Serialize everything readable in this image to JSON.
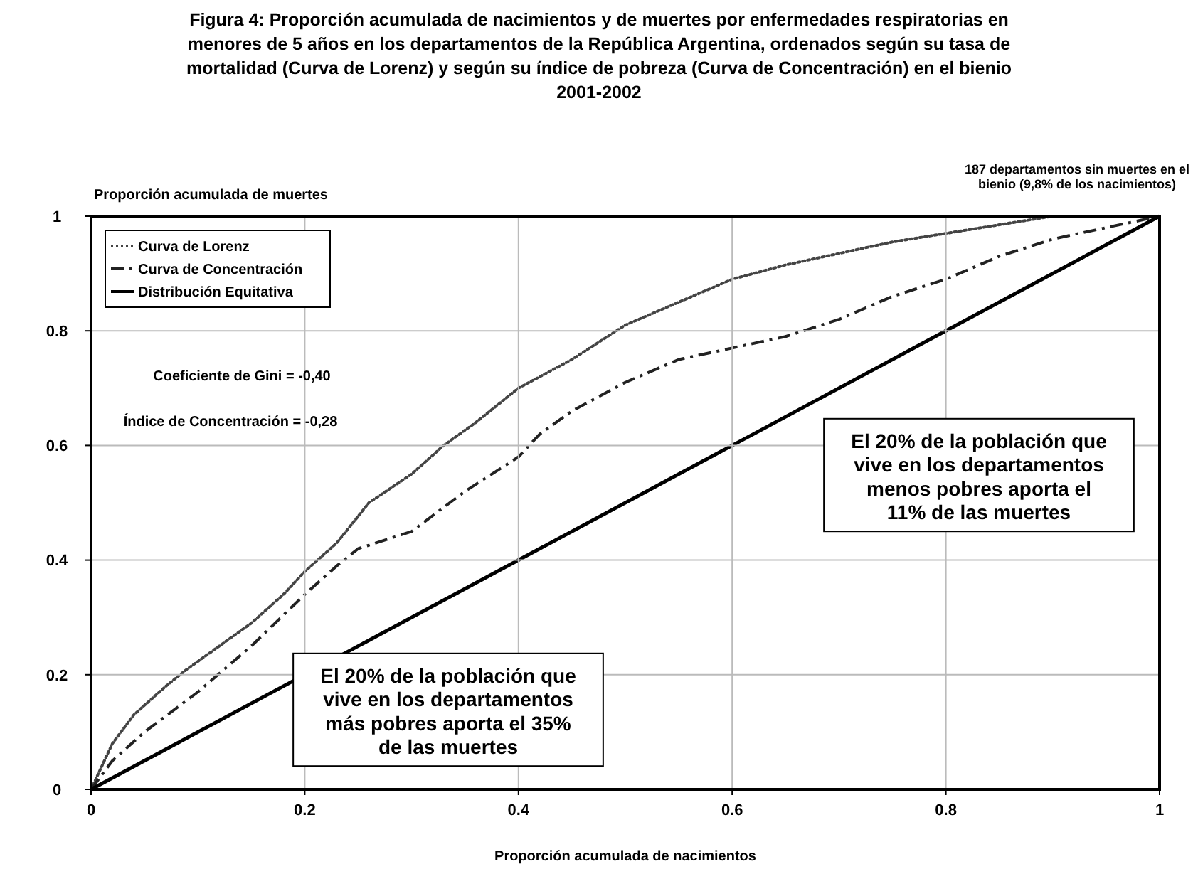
{
  "chart_data": {
    "type": "line",
    "title": "Figura 4: Proporción acumulada de nacimientos y de muertes por enfermedades respiratorias en\nmenores de 5 años en los departamentos de la República Argentina, ordenados según su tasa de\nmortalidad (Curva de Lorenz) y según su índice de pobreza (Curva de Concentración) en el bienio\n2001-2002",
    "xlabel": "Proporción acumulada de nacimientos",
    "ylabel": "Proporción acumulada de muertes",
    "series": [
      {
        "name": "Curva de Lorenz",
        "color": "#444444",
        "line_style": "dotted",
        "x": [
          0,
          0.02,
          0.04,
          0.07,
          0.09,
          0.12,
          0.15,
          0.18,
          0.2,
          0.23,
          0.26,
          0.3,
          0.33,
          0.36,
          0.4,
          0.45,
          0.5,
          0.55,
          0.6,
          0.65,
          0.7,
          0.75,
          0.8,
          0.85,
          0.9,
          0.95,
          1
        ],
        "values": [
          0,
          0.08,
          0.13,
          0.18,
          0.21,
          0.25,
          0.29,
          0.34,
          0.38,
          0.43,
          0.5,
          0.55,
          0.6,
          0.64,
          0.7,
          0.75,
          0.81,
          0.85,
          0.89,
          0.915,
          0.935,
          0.955,
          0.97,
          0.985,
          1,
          1,
          1
        ]
      },
      {
        "name": "Curva de Concentración",
        "color": "#222222",
        "line_style": "dashed",
        "x": [
          0,
          0.02,
          0.05,
          0.1,
          0.15,
          0.2,
          0.23,
          0.25,
          0.3,
          0.35,
          0.4,
          0.42,
          0.45,
          0.5,
          0.55,
          0.6,
          0.65,
          0.7,
          0.75,
          0.8,
          0.85,
          0.9,
          0.95,
          1
        ],
        "values": [
          0,
          0.05,
          0.1,
          0.17,
          0.25,
          0.34,
          0.39,
          0.42,
          0.45,
          0.52,
          0.58,
          0.62,
          0.66,
          0.71,
          0.75,
          0.77,
          0.79,
          0.82,
          0.86,
          0.89,
          0.93,
          0.96,
          0.98,
          1
        ]
      },
      {
        "name": "Distribución Equitativa",
        "color": "#000000",
        "line_style": "solid",
        "x": [
          0,
          1
        ],
        "values": [
          0,
          1
        ]
      }
    ],
    "xlim": [
      0,
      1
    ],
    "ylim": [
      0,
      1
    ],
    "xticks": [
      0,
      0.2,
      0.4,
      0.6,
      0.8,
      1
    ],
    "yticks": [
      0,
      0.2,
      0.4,
      0.6,
      0.8,
      1
    ],
    "grid": true,
    "legend": "top left",
    "marker": "none",
    "annotations": [
      "Coeficiente de Gini = -0,40",
      "Índice de Concentración =  -0,28",
      "El 20% de la población que\nvive en los departamentos\nmenos pobres aporta el\n11% de las muertes",
      "El 20% de la población que\nvive en los departamentos\nmás pobres aporta el 35%\nde las muertes",
      "187 departamentos sin muertes en el\nbienio (9,8% de los nacimientos)"
    ]
  }
}
